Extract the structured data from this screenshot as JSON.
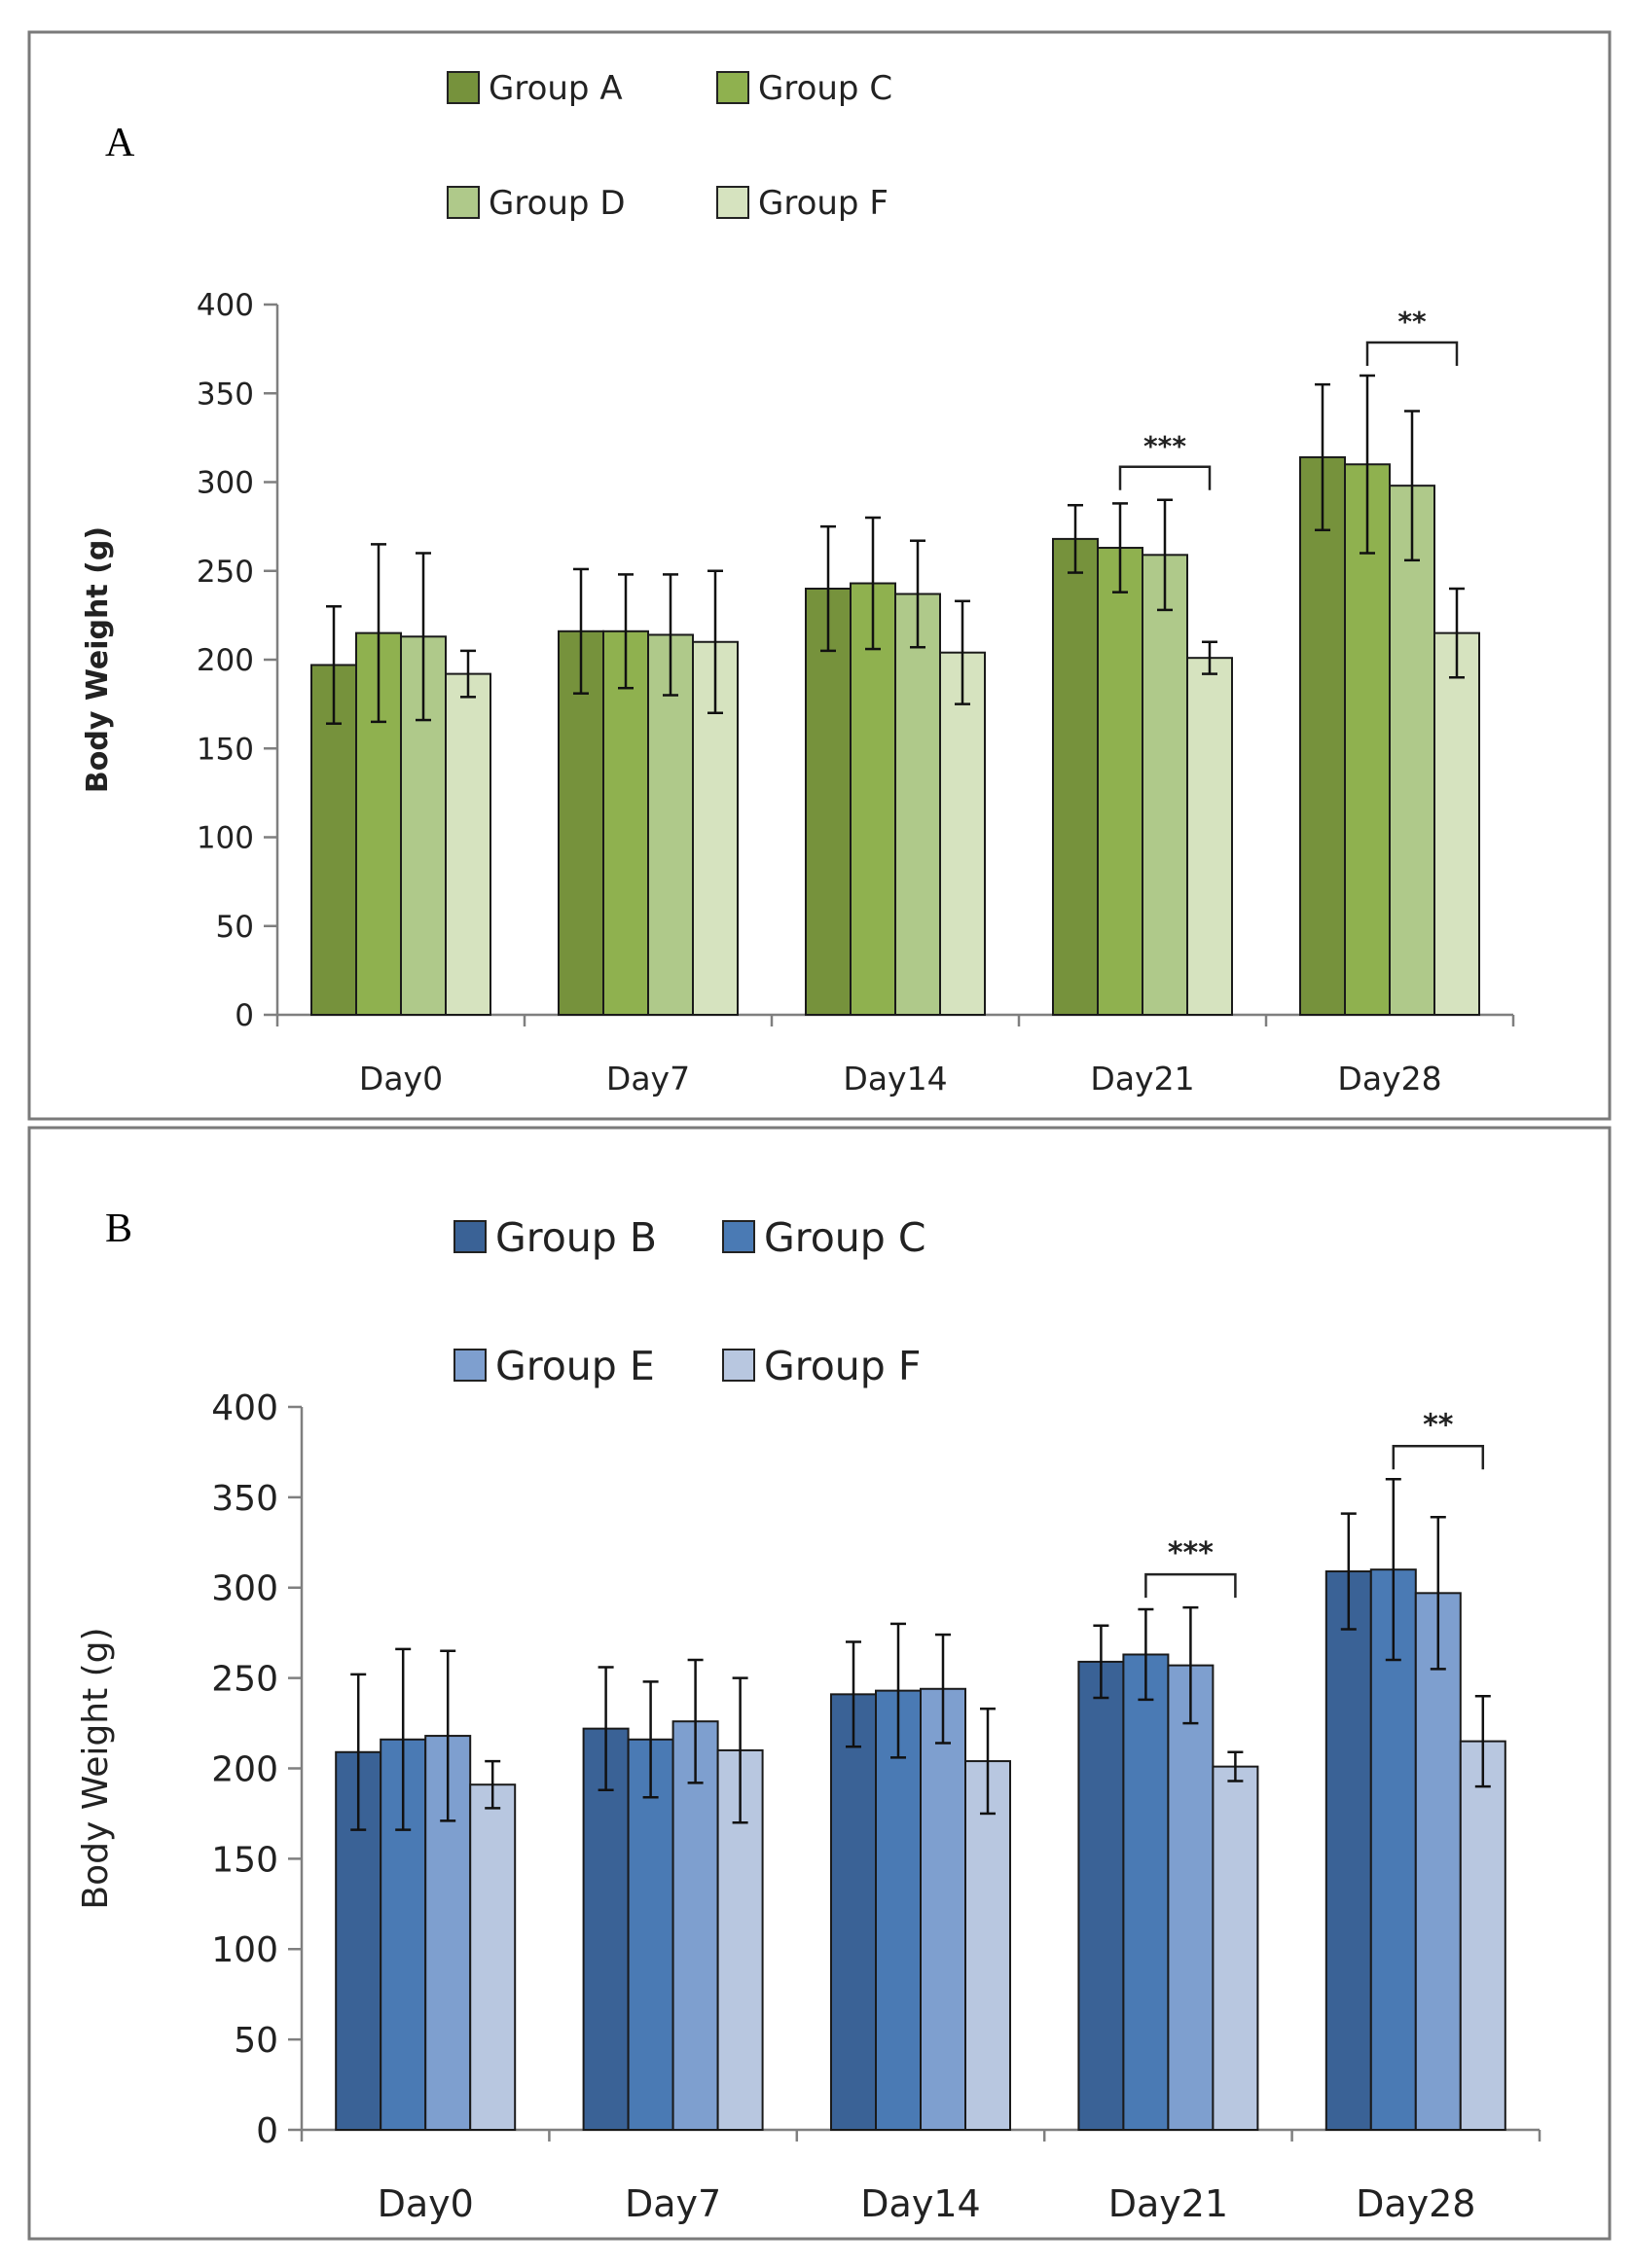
{
  "chart_data": [
    {
      "type": "bar",
      "panel_label": "A",
      "title": "",
      "xlabel": "",
      "ylabel": "Body Weight (g)",
      "ylim": [
        0,
        400
      ],
      "yticks": [
        0,
        50,
        100,
        150,
        200,
        250,
        300,
        350,
        400
      ],
      "categories": [
        "Day0",
        "Day7",
        "Day14",
        "Day21",
        "Day28"
      ],
      "legend_position": "top",
      "series": [
        {
          "name": "Group A",
          "color": "#76923c",
          "values": [
            197,
            216,
            240,
            268,
            314
          ],
          "errors": [
            33,
            35,
            35,
            19,
            41
          ]
        },
        {
          "name": "Group C",
          "color": "#8fb14f",
          "values": [
            215,
            216,
            243,
            263,
            310
          ],
          "errors": [
            50,
            32,
            37,
            25,
            50
          ]
        },
        {
          "name": "Group D",
          "color": "#afc98a",
          "values": [
            213,
            214,
            237,
            259,
            298
          ],
          "errors": [
            47,
            34,
            30,
            31,
            42
          ]
        },
        {
          "name": "Group F",
          "color": "#d6e3bf",
          "values": [
            192,
            210,
            204,
            201,
            215
          ],
          "errors": [
            13,
            40,
            29,
            9,
            25
          ]
        }
      ],
      "significance": [
        {
          "category": "Day21",
          "label": "***"
        },
        {
          "category": "Day28",
          "label": "**"
        }
      ]
    },
    {
      "type": "bar",
      "panel_label": "B",
      "title": "",
      "xlabel": "",
      "ylabel": "Body Weight (g)",
      "ylim": [
        0,
        400
      ],
      "yticks": [
        0,
        50,
        100,
        150,
        200,
        250,
        300,
        350,
        400
      ],
      "categories": [
        "Day0",
        "Day7",
        "Day14",
        "Day21",
        "Day28"
      ],
      "legend_position": "top",
      "series": [
        {
          "name": "Group B",
          "color": "#3a6296",
          "values": [
            209,
            222,
            241,
            259,
            309
          ],
          "errors": [
            43,
            34,
            29,
            20,
            32
          ]
        },
        {
          "name": "Group C",
          "color": "#4a7ab4",
          "values": [
            216,
            216,
            243,
            263,
            310
          ],
          "errors": [
            50,
            32,
            37,
            25,
            50
          ]
        },
        {
          "name": "Group E",
          "color": "#7e9fcf",
          "values": [
            218,
            226,
            244,
            257,
            297
          ],
          "errors": [
            47,
            34,
            30,
            32,
            42
          ]
        },
        {
          "name": "Group F",
          "color": "#b8c7e0",
          "values": [
            191,
            210,
            204,
            201,
            215
          ],
          "errors": [
            13,
            40,
            29,
            8,
            25
          ]
        }
      ],
      "significance": [
        {
          "category": "Day21",
          "label": "***"
        },
        {
          "category": "Day28",
          "label": "**"
        }
      ]
    }
  ]
}
